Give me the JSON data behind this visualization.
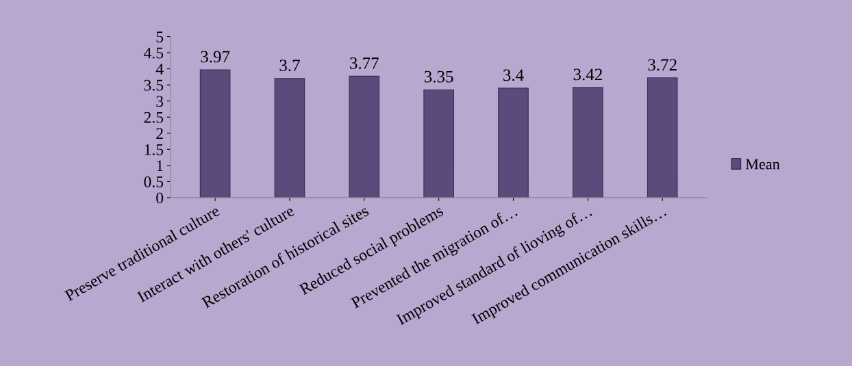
{
  "chart_data": {
    "type": "bar",
    "categories": [
      "Preserve traditional culture",
      "Interact with others' culture",
      "Restoration of historical sites",
      "Reduced social problems",
      "Prevented the migration of…",
      "Improved standard of lioving of…",
      "Improved communication skills…"
    ],
    "series": [
      {
        "name": "Mean",
        "color": "#5c4a7d",
        "values": [
          3.97,
          3.7,
          3.77,
          3.35,
          3.4,
          3.42,
          3.72
        ]
      }
    ],
    "ylim": [
      0,
      5
    ],
    "yticks": [
      0,
      0.5,
      1,
      1.5,
      2,
      2.5,
      3,
      3.5,
      4,
      4.5,
      5
    ],
    "data_labels": true,
    "grid": false,
    "legend": "right"
  }
}
